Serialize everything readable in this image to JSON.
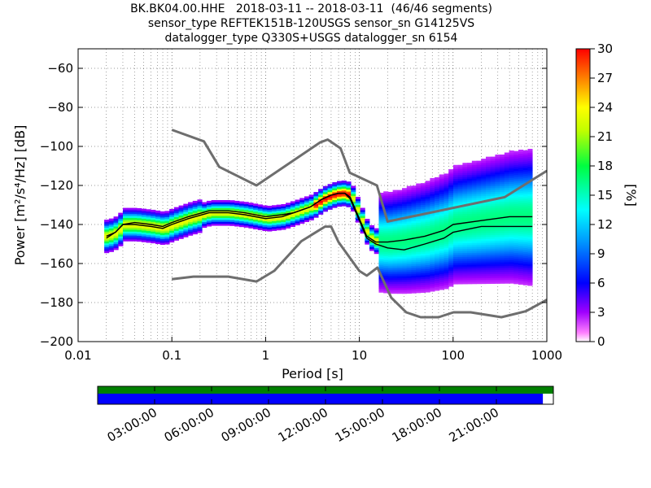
{
  "title": {
    "line1": "BK.BK04.00.HHE   2018-03-11 -- 2018-03-11  (46/46 segments)",
    "line2": "sensor_type REFTEK151B-120USGS sensor_sn G14125VS",
    "line3": "datalogger_type Q330S+USGS datalogger_sn 6154"
  },
  "chart_data": {
    "type": "heatmap",
    "xlabel": "Period [s]",
    "ylabel": "Power [m²/s⁴/Hz] [dB]",
    "xscale": "log",
    "xlim": [
      0.01,
      1000
    ],
    "ylim": [
      -200,
      -50
    ],
    "x_ticks": [
      "0.01",
      "0.1",
      "1",
      "10",
      "100",
      "1000"
    ],
    "y_ticks": [
      "−60",
      "−80",
      "−100",
      "−120",
      "−140",
      "−160",
      "−180",
      "−200"
    ],
    "y_tick_values": [
      -60,
      -80,
      -100,
      -120,
      -140,
      -160,
      -180,
      -200
    ],
    "colorbar": {
      "label": "[%]",
      "range": [
        0,
        30
      ],
      "ticks": [
        "0",
        "3",
        "6",
        "9",
        "12",
        "15",
        "18",
        "21",
        "24",
        "27",
        "30"
      ]
    },
    "nhnm": {
      "period": [
        0.1,
        0.22,
        0.32,
        0.8,
        3.8,
        4.6,
        6.3,
        7.9,
        15.4,
        20,
        354.8,
        1000
      ],
      "power": [
        -91.5,
        -97.4,
        -110.5,
        -120,
        -98,
        -96.5,
        -101,
        -113.5,
        -120,
        -138.5,
        -126,
        -112.5
      ]
    },
    "nlnm": {
      "period": [
        0.1,
        0.17,
        0.4,
        0.8,
        1.24,
        2.4,
        4.3,
        5,
        6,
        10,
        12,
        15.6,
        21.9,
        31.6,
        45,
        70,
        101,
        154,
        328,
        600,
        1000
      ],
      "power": [
        -168,
        -166.7,
        -166.7,
        -169.2,
        -163.7,
        -148.6,
        -141.1,
        -141.1,
        -149,
        -163.8,
        -166.2,
        -162.1,
        -177.5,
        -185,
        -187.5,
        -187.5,
        -185,
        -185,
        -187.5,
        -184.4,
        -178.6
      ]
    },
    "mode": {
      "period": [
        0.02,
        0.025,
        0.03,
        0.04,
        0.06,
        0.08,
        0.1,
        0.15,
        0.25,
        0.4,
        0.6,
        1,
        1.5,
        2,
        3,
        4,
        5,
        6,
        7,
        8,
        10,
        12,
        15,
        20,
        30,
        50,
        80,
        100,
        200,
        400,
        700
      ],
      "power": [
        -146,
        -144,
        -140,
        -140,
        -141,
        -142,
        -140,
        -137,
        -134,
        -134,
        -135,
        -137,
        -136,
        -134,
        -131,
        -127,
        -125,
        -124,
        -124,
        -126,
        -137,
        -146,
        -149,
        -149,
        -148,
        -146,
        -143,
        -140,
        -138,
        -136,
        -136
      ]
    },
    "mean": {
      "period": [
        0.02,
        0.025,
        0.03,
        0.04,
        0.06,
        0.08,
        0.1,
        0.15,
        0.25,
        0.4,
        0.6,
        1,
        1.5,
        2,
        3,
        4,
        5,
        6,
        7,
        8,
        10,
        12,
        15,
        20,
        30,
        50,
        80,
        100,
        200,
        400,
        700
      ],
      "power": [
        -147,
        -144,
        -140,
        -139,
        -140,
        -141,
        -139,
        -136,
        -133,
        -133,
        -134,
        -136,
        -135,
        -134,
        -131,
        -127,
        -125,
        -124,
        -124,
        -127,
        -138,
        -147,
        -150,
        -152,
        -153,
        -150,
        -147,
        -144,
        -141,
        -141,
        -141
      ]
    },
    "series": [
      {
        "name": "NHNM",
        "color": "#6e6e6e"
      },
      {
        "name": "NLNM",
        "color": "#6e6e6e"
      }
    ],
    "grid": "dotted",
    "timeline": {
      "ticks": [
        "03:00:00",
        "06:00:00",
        "09:00:00",
        "12:00:00",
        "15:00:00",
        "18:00:00",
        "21:00:00"
      ],
      "data_coverage": 1.0,
      "gap_coverage": 0.977,
      "colors": {
        "data": "#008000",
        "gap": "#0000ff"
      }
    }
  }
}
